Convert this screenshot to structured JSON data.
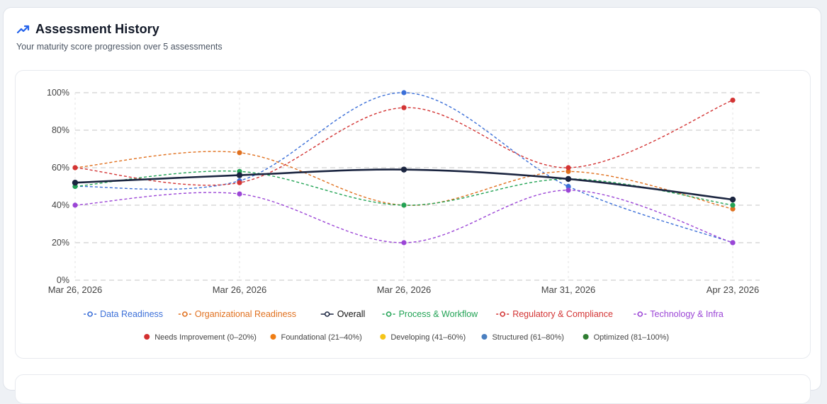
{
  "header": {
    "title": "Assessment History",
    "subtitle": "Your maturity score progression over 5 assessments",
    "icon": "trending-up-icon",
    "accent": "#2563eb"
  },
  "chart_data": {
    "type": "line",
    "categories": [
      "Mar 26, 2026",
      "Mar 26, 2026",
      "Mar 26, 2026",
      "Mar 31, 2026",
      "Apr 23, 2026"
    ],
    "ylim": [
      0,
      100
    ],
    "yticks": [
      "0%",
      "20%",
      "40%",
      "60%",
      "80%",
      "100%"
    ],
    "grid": true,
    "legend_position": "bottom",
    "series": [
      {
        "name": "Data Readiness",
        "color": "#3b6fd8",
        "dashed": true,
        "values": [
          50,
          53,
          100,
          50,
          20
        ]
      },
      {
        "name": "Organizational Readiness",
        "color": "#e0701e",
        "dashed": true,
        "values": [
          60,
          68,
          40,
          58,
          38
        ]
      },
      {
        "name": "Overall",
        "color": "#1b2540",
        "dashed": false,
        "values": [
          52,
          56,
          59,
          54,
          43
        ]
      },
      {
        "name": "Process & Workflow",
        "color": "#22a355",
        "dashed": true,
        "values": [
          50,
          58,
          40,
          54,
          40
        ]
      },
      {
        "name": "Regulatory & Compliance",
        "color": "#d33434",
        "dashed": true,
        "values": [
          60,
          52,
          92,
          60,
          96
        ]
      },
      {
        "name": "Technology & Infra",
        "color": "#9b45d6",
        "dashed": true,
        "values": [
          40,
          46,
          20,
          48,
          20
        ]
      }
    ],
    "maturity_levels": [
      {
        "label": "Needs Improvement (0–20%)",
        "color": "#d32f2f"
      },
      {
        "label": "Foundational (21–40%)",
        "color": "#ef7d14"
      },
      {
        "label": "Developing (41–60%)",
        "color": "#f5c518"
      },
      {
        "label": "Structured (61–80%)",
        "color": "#4a7fc0"
      },
      {
        "label": "Optimized (81–100%)",
        "color": "#2f7d32"
      }
    ]
  }
}
